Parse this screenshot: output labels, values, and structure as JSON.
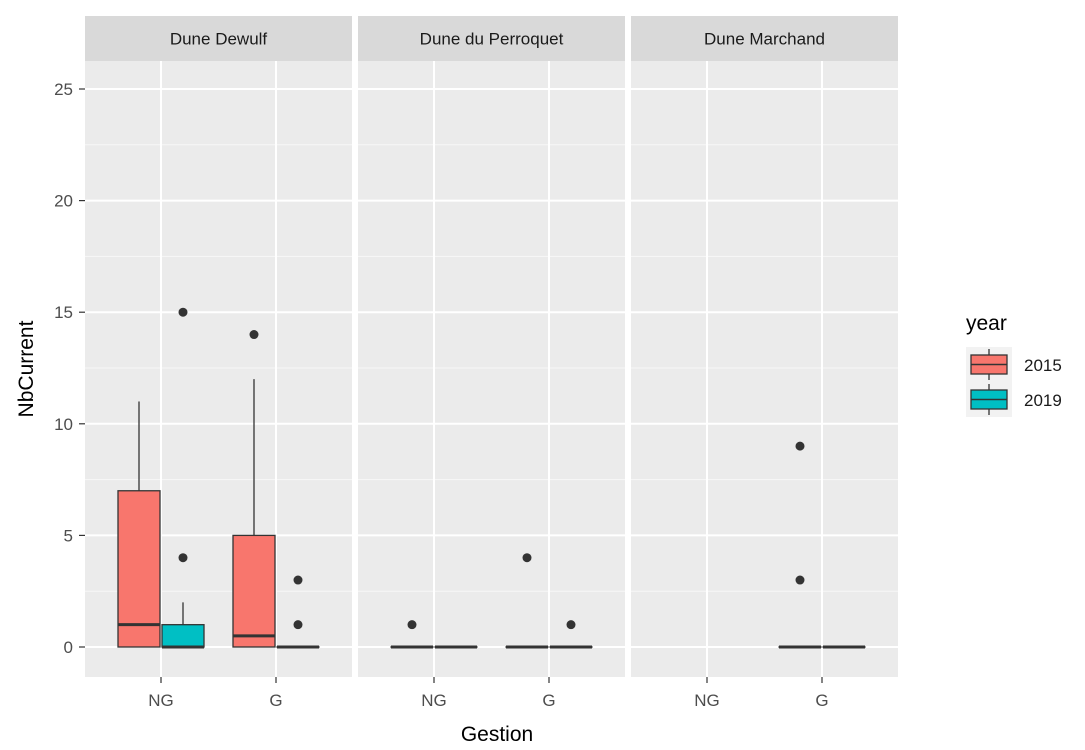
{
  "chart_data": {
    "type": "boxplot",
    "ylabel": "NbCurrent",
    "xlabel": "Gestion",
    "ylim": [
      -1.2,
      26.2
    ],
    "y_ticks": [
      0,
      5,
      10,
      15,
      20,
      25
    ],
    "categories": [
      "NG",
      "G"
    ],
    "grid": true,
    "legend": {
      "title": "year",
      "position": "right",
      "entries": [
        {
          "label": "2015",
          "color": "#F8766D"
        },
        {
          "label": "2019",
          "color": "#00BFC4"
        }
      ]
    },
    "panels": [
      {
        "title": "Dune Dewulf",
        "boxes": [
          {
            "category": "NG",
            "year": "2015",
            "min": 0,
            "q1": 0,
            "median": 1,
            "q3": 7,
            "max": 11,
            "outliers": []
          },
          {
            "category": "NG",
            "year": "2019",
            "min": 0,
            "q1": 0,
            "median": 0,
            "q3": 1,
            "max": 2,
            "outliers": [
              4,
              15
            ]
          },
          {
            "category": "G",
            "year": "2015",
            "min": 0,
            "q1": 0,
            "median": 0.5,
            "q3": 5,
            "max": 12,
            "outliers": [
              14
            ]
          },
          {
            "category": "G",
            "year": "2019",
            "min": 0,
            "q1": 0,
            "median": 0,
            "q3": 0,
            "max": 0,
            "outliers": [
              1,
              3
            ]
          }
        ]
      },
      {
        "title": "Dune du Perroquet",
        "boxes": [
          {
            "category": "NG",
            "year": "2015",
            "min": 0,
            "q1": 0,
            "median": 0,
            "q3": 0,
            "max": 0,
            "outliers": [
              1
            ]
          },
          {
            "category": "NG",
            "year": "2019",
            "min": 0,
            "q1": 0,
            "median": 0,
            "q3": 0,
            "max": 0,
            "outliers": []
          },
          {
            "category": "G",
            "year": "2015",
            "min": 0,
            "q1": 0,
            "median": 0,
            "q3": 0,
            "max": 0,
            "outliers": [
              4
            ]
          },
          {
            "category": "G",
            "year": "2019",
            "min": 0,
            "q1": 0,
            "median": 0,
            "q3": 0,
            "max": 0,
            "outliers": [
              1
            ]
          }
        ]
      },
      {
        "title": "Dune Marchand",
        "boxes": [
          {
            "category": "G",
            "year": "2015",
            "min": 0,
            "q1": 0,
            "median": 0,
            "q3": 0,
            "max": 0,
            "outliers": [
              3,
              9
            ]
          },
          {
            "category": "G",
            "year": "2019",
            "min": 0,
            "q1": 0,
            "median": 0,
            "q3": 0,
            "max": 0,
            "outliers": []
          }
        ]
      }
    ]
  }
}
